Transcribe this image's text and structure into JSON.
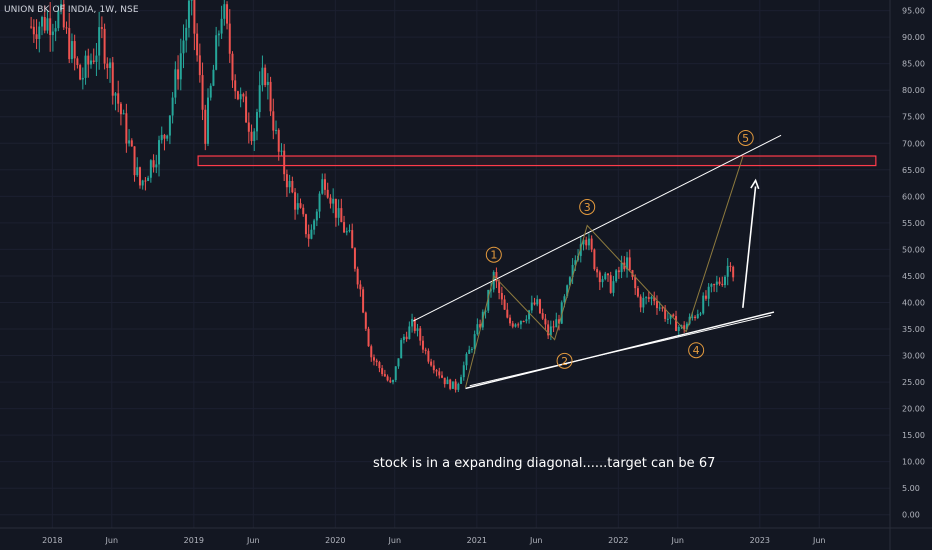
{
  "symbol": "UNION BK OF INDIA, 1W, NSE",
  "note": "stock is in a expanding diagonal......target can be 67",
  "colors": {
    "background": "#131722",
    "bull": "#26a69a",
    "bear": "#ef5350",
    "trendline": "#ffffff",
    "wave_path": "#8d7a3e",
    "wave_label": "#e39a3e",
    "zone_border": "#ff3b4a",
    "axis_text": "#b2b5be",
    "grid": "#1c2030"
  },
  "chart_data": {
    "type": "candlestick",
    "y_ticks": [
      "95.00",
      "90.00",
      "85.00",
      "80.00",
      "75.00",
      "70.00",
      "65.00",
      "60.00",
      "55.00",
      "50.00",
      "45.00",
      "40.00",
      "35.00",
      "30.00",
      "25.00",
      "20.00",
      "15.00",
      "10.00",
      "5.00",
      "0.00"
    ],
    "x_ticks": [
      {
        "label": "2018",
        "date": 2018.0
      },
      {
        "label": "Jun",
        "date": 2018.42
      },
      {
        "label": "2019",
        "date": 2019.0
      },
      {
        "label": "Jun",
        "date": 2019.42
      },
      {
        "label": "2020",
        "date": 2020.0
      },
      {
        "label": "Jun",
        "date": 2020.42
      },
      {
        "label": "2021",
        "date": 2021.0
      },
      {
        "label": "Jun",
        "date": 2021.42
      },
      {
        "label": "2022",
        "date": 2022.0
      },
      {
        "label": "Jun",
        "date": 2022.42
      },
      {
        "label": "2023",
        "date": 2023.0
      },
      {
        "label": "Jun",
        "date": 2023.42
      }
    ],
    "price_path": [
      [
        2017.85,
        92
      ],
      [
        2018.05,
        94
      ],
      [
        2018.2,
        82
      ],
      [
        2018.35,
        90
      ],
      [
        2018.5,
        74
      ],
      [
        2018.62,
        62
      ],
      [
        2018.8,
        72
      ],
      [
        2018.98,
        97
      ],
      [
        2019.08,
        72
      ],
      [
        2019.2,
        96
      ],
      [
        2019.3,
        80
      ],
      [
        2019.42,
        72
      ],
      [
        2019.5,
        84
      ],
      [
        2019.6,
        68
      ],
      [
        2019.7,
        60
      ],
      [
        2019.82,
        52
      ],
      [
        2019.92,
        64
      ],
      [
        2020.02,
        56
      ],
      [
        2020.1,
        52
      ],
      [
        2020.18,
        42
      ],
      [
        2020.25,
        30
      ],
      [
        2020.33,
        27
      ],
      [
        2020.4,
        24
      ],
      [
        2020.47,
        33
      ],
      [
        2020.55,
        36
      ],
      [
        2020.65,
        30
      ],
      [
        2020.78,
        25
      ],
      [
        2020.85,
        24
      ],
      [
        2020.95,
        31
      ],
      [
        2021.05,
        38
      ],
      [
        2021.12,
        45
      ],
      [
        2021.22,
        36
      ],
      [
        2021.32,
        37
      ],
      [
        2021.42,
        40
      ],
      [
        2021.5,
        34
      ],
      [
        2021.58,
        37
      ],
      [
        2021.65,
        43
      ],
      [
        2021.75,
        54
      ],
      [
        2021.85,
        46
      ],
      [
        2021.95,
        43
      ],
      [
        2022.05,
        48
      ],
      [
        2022.15,
        40
      ],
      [
        2022.25,
        41
      ],
      [
        2022.35,
        37
      ],
      [
        2022.45,
        35
      ],
      [
        2022.55,
        38
      ],
      [
        2022.65,
        42
      ],
      [
        2022.75,
        45
      ],
      [
        2022.8,
        49
      ],
      [
        2022.82,
        43
      ]
    ],
    "zone": {
      "from_price": 65.8,
      "to_price": 67.6
    },
    "channel_upper": [
      [
        2020.55,
        36.5
      ],
      [
        2023.15,
        71.5
      ]
    ],
    "channel_lower": [
      [
        2020.92,
        23.8
      ],
      [
        2023.1,
        38.2
      ]
    ],
    "channel_lower_2": [
      [
        2020.95,
        24.3
      ],
      [
        2023.08,
        37.6
      ]
    ],
    "wave_path": [
      [
        2020.92,
        24
      ],
      [
        2021.12,
        45
      ],
      [
        2021.55,
        33
      ],
      [
        2021.78,
        54.5
      ],
      [
        2022.48,
        34.5
      ],
      [
        2022.88,
        67.5
      ]
    ],
    "wave_labels": [
      {
        "label": "1",
        "date": 2021.12,
        "price": 49
      },
      {
        "label": "2",
        "date": 2021.62,
        "price": 29
      },
      {
        "label": "3",
        "date": 2021.78,
        "price": 58
      },
      {
        "label": "4",
        "date": 2022.55,
        "price": 31
      },
      {
        "label": "5",
        "date": 2022.9,
        "price": 71
      }
    ],
    "projection_arrow": [
      [
        2022.88,
        39
      ],
      [
        2022.97,
        63
      ]
    ],
    "ylim": [
      -2.5,
      97
    ],
    "xlim": [
      2017.63,
      2023.92
    ]
  }
}
